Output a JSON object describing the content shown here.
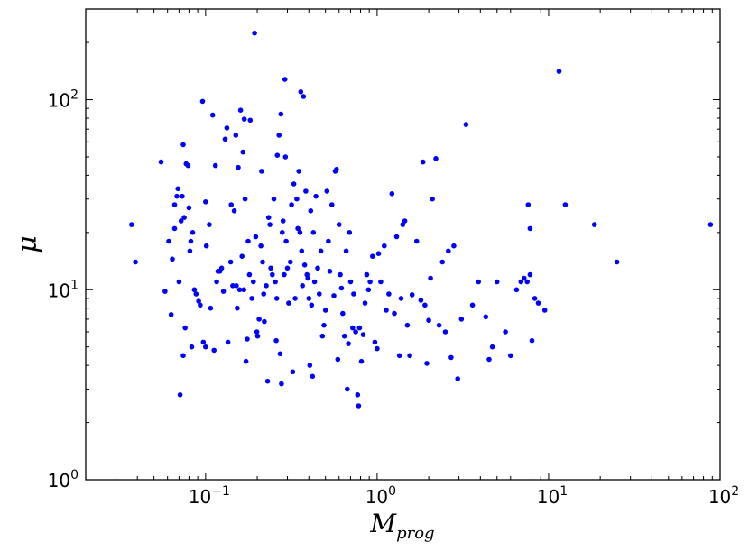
{
  "chart_data": {
    "type": "scatter",
    "title": "",
    "xlabel": {
      "main": "M",
      "sub": "prog"
    },
    "ylabel": "μ",
    "xscale": "log",
    "yscale": "log",
    "xlim": [
      0.02,
      100
    ],
    "ylim": [
      1,
      300
    ],
    "grid": false,
    "legend": "none",
    "marker_color": "#0000ff",
    "x_ticks": [
      {
        "value": 0.1,
        "base": "10",
        "exp": "−1"
      },
      {
        "value": 1,
        "base": "10",
        "exp": "0"
      },
      {
        "value": 10,
        "base": "10",
        "exp": "1"
      },
      {
        "value": 100,
        "base": "10",
        "exp": "2"
      }
    ],
    "y_ticks": [
      {
        "value": 1,
        "base": "10",
        "exp": "0"
      },
      {
        "value": 10,
        "base": "10",
        "exp": "1"
      },
      {
        "value": 100,
        "base": "10",
        "exp": "2"
      }
    ],
    "series": [
      {
        "points": [
          [
            0.037,
            22
          ],
          [
            0.039,
            14
          ],
          [
            0.055,
            47
          ],
          [
            0.058,
            9.8
          ],
          [
            0.061,
            18
          ],
          [
            0.063,
            7.4
          ],
          [
            0.064,
            14.5
          ],
          [
            0.066,
            21
          ],
          [
            0.066,
            28
          ],
          [
            0.068,
            31
          ],
          [
            0.069,
            34
          ],
          [
            0.07,
            11
          ],
          [
            0.071,
            2.8
          ],
          [
            0.072,
            23
          ],
          [
            0.073,
            31
          ],
          [
            0.074,
            58
          ],
          [
            0.074,
            4.5
          ],
          [
            0.075,
            24
          ],
          [
            0.076,
            6.3
          ],
          [
            0.077,
            46
          ],
          [
            0.079,
            45
          ],
          [
            0.08,
            27
          ],
          [
            0.081,
            16
          ],
          [
            0.082,
            18
          ],
          [
            0.083,
            5
          ],
          [
            0.084,
            20
          ],
          [
            0.086,
            10
          ],
          [
            0.088,
            9.5
          ],
          [
            0.091,
            8.7
          ],
          [
            0.093,
            8.3
          ],
          [
            0.096,
            98
          ],
          [
            0.097,
            5.3
          ],
          [
            0.1,
            5
          ],
          [
            0.1,
            29
          ],
          [
            0.101,
            17
          ],
          [
            0.105,
            22
          ],
          [
            0.107,
            8
          ],
          [
            0.11,
            83
          ],
          [
            0.112,
            4.8
          ],
          [
            0.114,
            45
          ],
          [
            0.116,
            11
          ],
          [
            0.118,
            12.5
          ],
          [
            0.121,
            12.5
          ],
          [
            0.124,
            13
          ],
          [
            0.127,
            9.8
          ],
          [
            0.13,
            62
          ],
          [
            0.133,
            71
          ],
          [
            0.135,
            5.3
          ],
          [
            0.14,
            14
          ],
          [
            0.141,
            28
          ],
          [
            0.144,
            10.5
          ],
          [
            0.147,
            26
          ],
          [
            0.15,
            65
          ],
          [
            0.151,
            10.5
          ],
          [
            0.153,
            8
          ],
          [
            0.155,
            44
          ],
          [
            0.158,
            10
          ],
          [
            0.16,
            88
          ],
          [
            0.163,
            15
          ],
          [
            0.165,
            53
          ],
          [
            0.167,
            10
          ],
          [
            0.168,
            79
          ],
          [
            0.17,
            30
          ],
          [
            0.172,
            4.2
          ],
          [
            0.175,
            5.5
          ],
          [
            0.177,
            18
          ],
          [
            0.18,
            12
          ],
          [
            0.182,
            78
          ],
          [
            0.186,
            9
          ],
          [
            0.19,
            11
          ],
          [
            0.193,
            224
          ],
          [
            0.196,
            19
          ],
          [
            0.199,
            6
          ],
          [
            0.201,
            5.7
          ],
          [
            0.205,
            7
          ],
          [
            0.21,
            17
          ],
          [
            0.212,
            42
          ],
          [
            0.215,
            14
          ],
          [
            0.218,
            9.5
          ],
          [
            0.22,
            6.8
          ],
          [
            0.226,
            10.5
          ],
          [
            0.23,
            3.3
          ],
          [
            0.233,
            24
          ],
          [
            0.237,
            22
          ],
          [
            0.24,
            13
          ],
          [
            0.245,
            12
          ],
          [
            0.25,
            30
          ],
          [
            0.255,
            11
          ],
          [
            0.258,
            5.4
          ],
          [
            0.26,
            9
          ],
          [
            0.262,
            51
          ],
          [
            0.268,
            65
          ],
          [
            0.272,
            4.6
          ],
          [
            0.275,
            84
          ],
          [
            0.277,
            3.2
          ],
          [
            0.28,
            20
          ],
          [
            0.283,
            23
          ],
          [
            0.287,
            12
          ],
          [
            0.29,
            128
          ],
          [
            0.292,
            50
          ],
          [
            0.295,
            18
          ],
          [
            0.3,
            13
          ],
          [
            0.305,
            8.5
          ],
          [
            0.312,
            14
          ],
          [
            0.317,
            28
          ],
          [
            0.322,
            3.7
          ],
          [
            0.327,
            36
          ],
          [
            0.333,
            9
          ],
          [
            0.34,
            30
          ],
          [
            0.345,
            21
          ],
          [
            0.35,
            42
          ],
          [
            0.355,
            20
          ],
          [
            0.359,
            110
          ],
          [
            0.363,
            16
          ],
          [
            0.367,
            10.5
          ],
          [
            0.372,
            104
          ],
          [
            0.378,
            13.5
          ],
          [
            0.384,
            33
          ],
          [
            0.39,
            12
          ],
          [
            0.395,
            11.5
          ],
          [
            0.4,
            9
          ],
          [
            0.405,
            4
          ],
          [
            0.41,
            26
          ],
          [
            0.415,
            8.3
          ],
          [
            0.42,
            3.5
          ],
          [
            0.425,
            20
          ],
          [
            0.432,
            11
          ],
          [
            0.44,
            31
          ],
          [
            0.45,
            13
          ],
          [
            0.46,
            9.5
          ],
          [
            0.47,
            16
          ],
          [
            0.48,
            5.7
          ],
          [
            0.49,
            6.5
          ],
          [
            0.5,
            7.8
          ],
          [
            0.51,
            33
          ],
          [
            0.52,
            18
          ],
          [
            0.53,
            12.5
          ],
          [
            0.545,
            28
          ],
          [
            0.56,
            9.3
          ],
          [
            0.57,
            42
          ],
          [
            0.58,
            43
          ],
          [
            0.59,
            4.3
          ],
          [
            0.6,
            22
          ],
          [
            0.61,
            12
          ],
          [
            0.62,
            10.2
          ],
          [
            0.63,
            7.5
          ],
          [
            0.645,
            5.7
          ],
          [
            0.66,
            16
          ],
          [
            0.67,
            3
          ],
          [
            0.68,
            5.2
          ],
          [
            0.69,
            20
          ],
          [
            0.7,
            11
          ],
          [
            0.72,
            6.3
          ],
          [
            0.73,
            9.5
          ],
          [
            0.75,
            6
          ],
          [
            0.77,
            2.8
          ],
          [
            0.78,
            2.45
          ],
          [
            0.79,
            6.3
          ],
          [
            0.81,
            4.2
          ],
          [
            0.83,
            5.8
          ],
          [
            0.85,
            8.5
          ],
          [
            0.87,
            12
          ],
          [
            0.89,
            10
          ],
          [
            0.91,
            11
          ],
          [
            0.94,
            15
          ],
          [
            0.97,
            5.3
          ],
          [
            1.0,
            4.9
          ],
          [
            1.02,
            15.5
          ],
          [
            1.05,
            11
          ],
          [
            1.1,
            17
          ],
          [
            1.13,
            7.8
          ],
          [
            1.17,
            9.5
          ],
          [
            1.22,
            32
          ],
          [
            1.26,
            7.5
          ],
          [
            1.3,
            19
          ],
          [
            1.35,
            4.5
          ],
          [
            1.38,
            9
          ],
          [
            1.41,
            22
          ],
          [
            1.45,
            23
          ],
          [
            1.5,
            6.5
          ],
          [
            1.55,
            4.5
          ],
          [
            1.6,
            9.4
          ],
          [
            1.7,
            18
          ],
          [
            1.8,
            8.8
          ],
          [
            1.85,
            47
          ],
          [
            1.9,
            8.3
          ],
          [
            1.95,
            4.1
          ],
          [
            2.0,
            6.9
          ],
          [
            2.05,
            11.5
          ],
          [
            2.1,
            30
          ],
          [
            2.2,
            49
          ],
          [
            2.3,
            6.5
          ],
          [
            2.4,
            14
          ],
          [
            2.5,
            6
          ],
          [
            2.6,
            16
          ],
          [
            2.7,
            4.4
          ],
          [
            2.8,
            17
          ],
          [
            2.95,
            3.4
          ],
          [
            3.1,
            7
          ],
          [
            3.3,
            74
          ],
          [
            3.6,
            8.3
          ],
          [
            3.9,
            11
          ],
          [
            4.3,
            7.2
          ],
          [
            4.5,
            4.3
          ],
          [
            4.7,
            5
          ],
          [
            5.0,
            11
          ],
          [
            5.6,
            6
          ],
          [
            6.0,
            4.5
          ],
          [
            6.5,
            10
          ],
          [
            6.9,
            11
          ],
          [
            7.2,
            11.5
          ],
          [
            7.5,
            11
          ],
          [
            7.6,
            28
          ],
          [
            7.8,
            21
          ],
          [
            7.8,
            12
          ],
          [
            8.0,
            5.4
          ],
          [
            8.3,
            9
          ],
          [
            8.7,
            8.5
          ],
          [
            9.5,
            7.8
          ],
          [
            11.5,
            141
          ],
          [
            12.5,
            28
          ],
          [
            18.5,
            22
          ],
          [
            25,
            14
          ],
          [
            88,
            22
          ]
        ]
      }
    ]
  }
}
